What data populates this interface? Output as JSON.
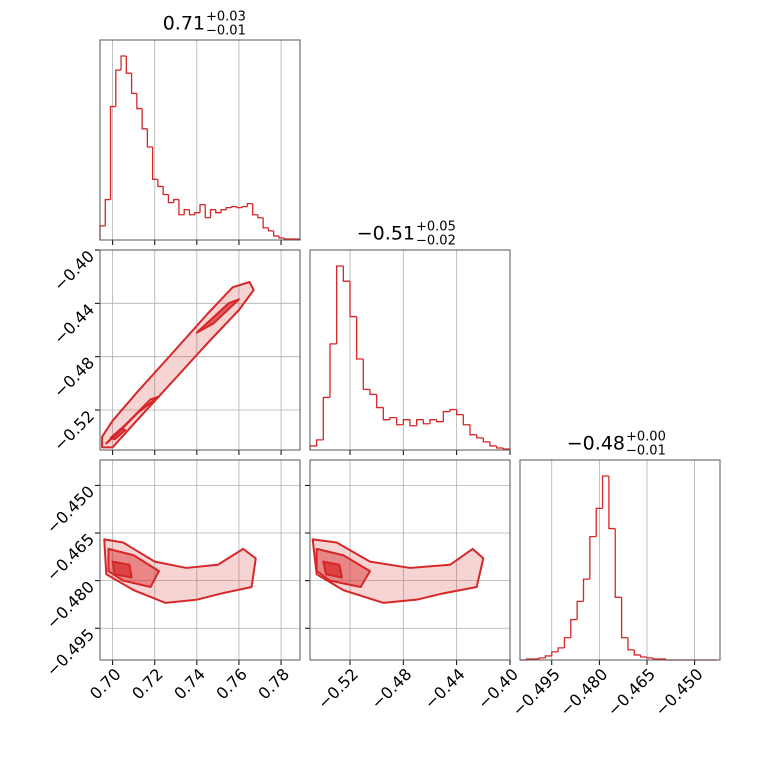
{
  "chart_data": {
    "type": "corner",
    "color": "#d62728",
    "grid": true,
    "parameters": [
      {
        "lim": [
          0.694,
          0.789
        ],
        "ticks": [
          {
            "value": 0.7,
            "label": "0.70"
          },
          {
            "value": 0.72,
            "label": "0.72"
          },
          {
            "value": 0.74,
            "label": "0.74"
          },
          {
            "value": 0.76,
            "label": "0.76"
          },
          {
            "value": 0.78,
            "label": "0.78"
          }
        ],
        "title": {
          "value": "0.71",
          "plus": "+0.03",
          "minus": "−0.01"
        },
        "bins": [
          0.694,
          0.6965,
          0.699,
          0.7015,
          0.704,
          0.7065,
          0.709,
          0.7115,
          0.714,
          0.7165,
          0.719,
          0.7215,
          0.724,
          0.7265,
          0.729,
          0.7315,
          0.734,
          0.7365,
          0.739,
          0.7415,
          0.744,
          0.7465,
          0.749,
          0.7515,
          0.754,
          0.7565,
          0.759,
          0.7615,
          0.764,
          0.7665,
          0.769,
          0.7715,
          0.774,
          0.7765,
          0.779,
          0.7815,
          0.784,
          0.7865,
          0.789
        ],
        "counts": [
          14,
          40,
          132,
          168,
          182,
          165,
          145,
          130,
          110,
          92,
          60,
          53,
          45,
          37,
          40,
          25,
          30,
          25,
          27,
          35,
          22,
          30,
          27,
          30,
          32,
          33,
          32,
          33,
          36,
          25,
          22,
          12,
          9,
          4,
          2,
          1,
          1,
          1
        ]
      },
      {
        "lim": [
          -0.55,
          -0.4
        ],
        "ticks": [
          {
            "value": -0.52,
            "label": "−0.52"
          },
          {
            "value": -0.48,
            "label": "−0.48"
          },
          {
            "value": -0.44,
            "label": "−0.44"
          },
          {
            "value": -0.4,
            "label": "−0.40"
          }
        ],
        "title": {
          "value": "−0.51",
          "plus": "+0.05",
          "minus": "−0.02"
        },
        "bins": [
          -0.55,
          -0.545,
          -0.54,
          -0.535,
          -0.53,
          -0.525,
          -0.52,
          -0.515,
          -0.51,
          -0.505,
          -0.5,
          -0.495,
          -0.49,
          -0.485,
          -0.48,
          -0.475,
          -0.47,
          -0.465,
          -0.46,
          -0.455,
          -0.45,
          -0.445,
          -0.44,
          -0.435,
          -0.43,
          -0.425,
          -0.42,
          -0.415,
          -0.41,
          -0.405,
          -0.4
        ],
        "counts": [
          4,
          10,
          52,
          105,
          182,
          167,
          132,
          90,
          60,
          55,
          42,
          30,
          32,
          25,
          30,
          24,
          30,
          26,
          30,
          28,
          38,
          40,
          35,
          25,
          15,
          12,
          8,
          4,
          2,
          1
        ]
      },
      {
        "lim": [
          -0.505,
          -0.442
        ],
        "ticks": [
          {
            "value": -0.495,
            "label": "−0.495"
          },
          {
            "value": -0.48,
            "label": "−0.480"
          },
          {
            "value": -0.465,
            "label": "−0.465"
          },
          {
            "value": -0.45,
            "label": "−0.450"
          }
        ],
        "title": {
          "value": "−0.48",
          "plus": "+0.00",
          "minus": "−0.01"
        },
        "bins": [
          -0.505,
          -0.503,
          -0.501,
          -0.499,
          -0.497,
          -0.495,
          -0.493,
          -0.491,
          -0.489,
          -0.487,
          -0.485,
          -0.483,
          -0.481,
          -0.479,
          -0.477,
          -0.475,
          -0.473,
          -0.471,
          -0.469,
          -0.467,
          -0.465,
          -0.463,
          -0.461,
          -0.459,
          -0.457,
          -0.455,
          -0.453,
          -0.451,
          -0.449,
          -0.447,
          -0.445,
          -0.443
        ],
        "counts": [
          0,
          1,
          1,
          2,
          4,
          8,
          12,
          22,
          40,
          58,
          80,
          122,
          150,
          182,
          130,
          62,
          22,
          10,
          5,
          3,
          2,
          1,
          1,
          0,
          0,
          0,
          0,
          0,
          0,
          0,
          0
        ]
      }
    ],
    "pairs": [
      {
        "contours": [
          {
            "x": [
              0.695,
              0.7,
              0.712,
              0.73,
              0.745,
              0.76,
              0.767,
              0.765,
              0.757,
              0.745,
              0.728,
              0.712,
              0.7,
              0.695
            ],
            "y": [
              -0.548,
              -0.548,
              -0.527,
              -0.496,
              -0.47,
              -0.445,
              -0.43,
              -0.424,
              -0.428,
              -0.448,
              -0.478,
              -0.506,
              -0.528,
              -0.54
            ]
          },
          {
            "x": [
              0.697,
              0.708,
              0.718,
              0.722,
              0.712,
              0.702
            ],
            "y": [
              -0.545,
              -0.528,
              -0.512,
              -0.51,
              -0.522,
              -0.538
            ]
          },
          {
            "x": [
              0.74,
              0.755,
              0.76,
              0.748
            ],
            "y": [
              -0.462,
              -0.44,
              -0.437,
              -0.455
            ]
          },
          {
            "x": [
              0.699,
              0.704,
              0.706,
              0.701
            ],
            "y": [
              -0.541,
              -0.534,
              -0.535,
              -0.542
            ]
          }
        ]
      },
      {
        "contours": [
          {
            "x": [
              0.696,
              0.705,
              0.72,
              0.735,
              0.75,
              0.762,
              0.768,
              0.766,
              0.752,
              0.74,
              0.725,
              0.71,
              0.697
            ],
            "y": [
              -0.467,
              -0.468,
              -0.474,
              -0.476,
              -0.475,
              -0.47,
              -0.473,
              -0.482,
              -0.484,
              -0.486,
              -0.487,
              -0.483,
              -0.478
            ]
          },
          {
            "x": [
              0.698,
              0.71,
              0.722,
              0.718,
              0.705,
              0.698
            ],
            "y": [
              -0.47,
              -0.472,
              -0.477,
              -0.482,
              -0.48,
              -0.477
            ]
          },
          {
            "x": [
              0.7,
              0.708,
              0.709,
              0.701
            ],
            "y": [
              -0.474,
              -0.475,
              -0.479,
              -0.478
            ]
          }
        ]
      },
      {
        "contours": [
          {
            "x": [
              -0.548,
              -0.53,
              -0.505,
              -0.475,
              -0.445,
              -0.428,
              -0.42,
              -0.425,
              -0.45,
              -0.47,
              -0.495,
              -0.525,
              -0.545
            ],
            "y": [
              -0.467,
              -0.468,
              -0.474,
              -0.476,
              -0.475,
              -0.47,
              -0.473,
              -0.482,
              -0.484,
              -0.486,
              -0.487,
              -0.483,
              -0.478
            ]
          },
          {
            "x": [
              -0.545,
              -0.525,
              -0.505,
              -0.512,
              -0.535,
              -0.545
            ],
            "y": [
              -0.47,
              -0.472,
              -0.477,
              -0.482,
              -0.48,
              -0.477
            ]
          },
          {
            "x": [
              -0.54,
              -0.528,
              -0.526,
              -0.538
            ],
            "y": [
              -0.474,
              -0.475,
              -0.479,
              -0.478
            ]
          }
        ]
      }
    ]
  }
}
